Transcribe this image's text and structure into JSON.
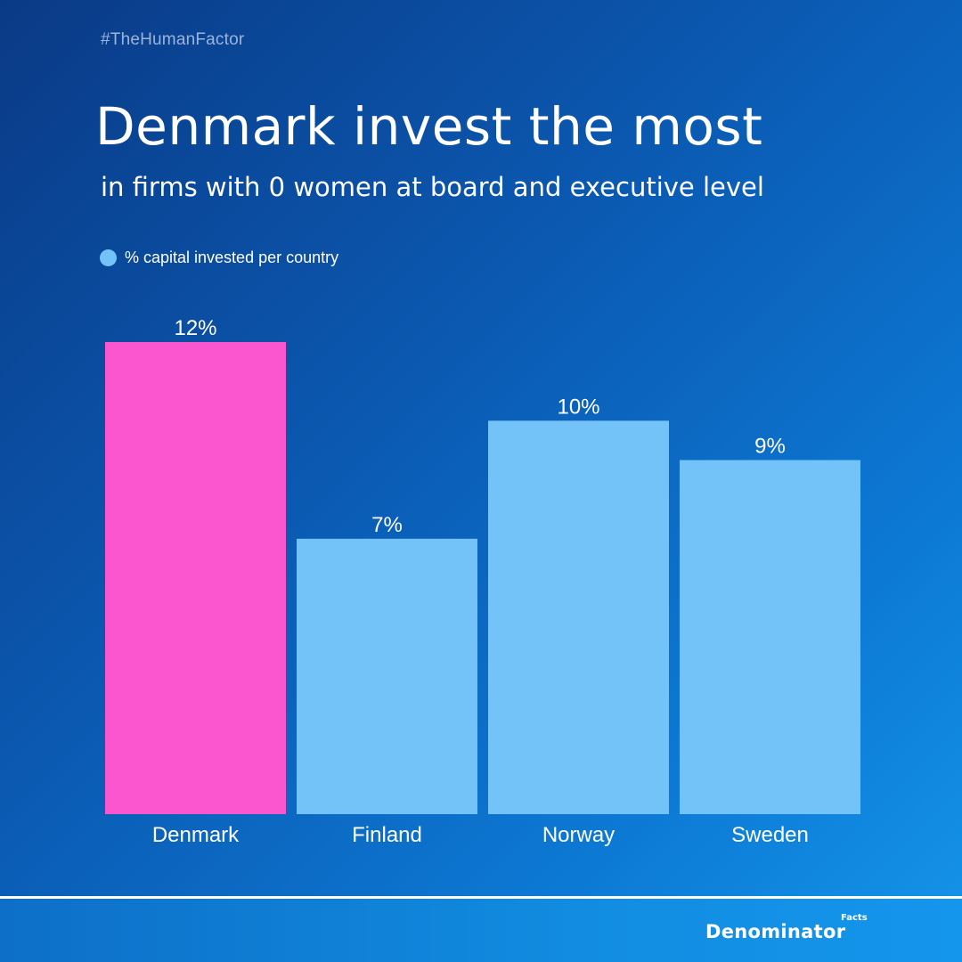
{
  "header": {
    "hashtag": "#TheHumanFactor",
    "title": "Denmark invest the most",
    "subtitle": "in firms with 0 women at board and executive level"
  },
  "legend": {
    "label": "% capital invested per country",
    "color": "#73c2f8"
  },
  "chart_data": {
    "type": "bar",
    "title": "Denmark invest the most",
    "subtitle": "in firms with 0 women at board and executive level",
    "xlabel": "",
    "ylabel": "",
    "ylim": [
      0,
      12
    ],
    "grid": false,
    "legend_position": "top-left",
    "series_name": "% capital invested per country",
    "categories": [
      "Denmark",
      "Finland",
      "Norway",
      "Sweden"
    ],
    "values": [
      12,
      7,
      10,
      9
    ],
    "data_labels": [
      "12%",
      "7%",
      "10%",
      "9%"
    ],
    "colors": [
      "#fb55d0",
      "#73c2f8",
      "#73c2f8",
      "#73c2f8"
    ]
  },
  "footer": {
    "brand": "Denominator",
    "brand_super": "Facts"
  }
}
